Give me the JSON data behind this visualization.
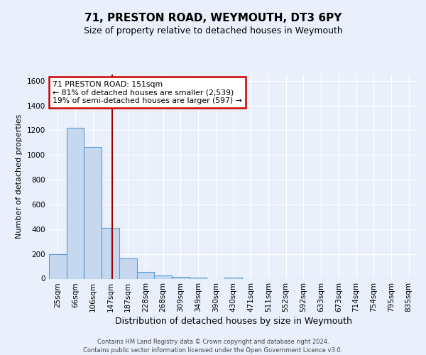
{
  "title1": "71, PRESTON ROAD, WEYMOUTH, DT3 6PY",
  "title2": "Size of property relative to detached houses in Weymouth",
  "xlabel": "Distribution of detached houses by size in Weymouth",
  "ylabel": "Number of detached properties",
  "categories": [
    "25sqm",
    "66sqm",
    "106sqm",
    "147sqm",
    "187sqm",
    "228sqm",
    "268sqm",
    "309sqm",
    "349sqm",
    "390sqm",
    "430sqm",
    "471sqm",
    "511sqm",
    "552sqm",
    "592sqm",
    "633sqm",
    "673sqm",
    "714sqm",
    "754sqm",
    "795sqm",
    "835sqm"
  ],
  "values": [
    200,
    1220,
    1065,
    410,
    165,
    52,
    25,
    14,
    9,
    0,
    10,
    0,
    0,
    0,
    0,
    0,
    0,
    0,
    0,
    0,
    0
  ],
  "bar_color": "#c5d8f0",
  "bar_edge_color": "#5b9bd5",
  "ylim": [
    0,
    1650
  ],
  "yticks": [
    0,
    200,
    400,
    600,
    800,
    1000,
    1200,
    1400,
    1600
  ],
  "property_line_bin": 3.1,
  "annotation_text": "71 PRESTON ROAD: 151sqm\n← 81% of detached houses are smaller (2,539)\n19% of semi-detached houses are larger (597) →",
  "footer1": "Contains HM Land Registry data © Crown copyright and database right 2024.",
  "footer2": "Contains public sector information licensed under the Open Government Licence v3.0.",
  "background_color": "#eaf0fb",
  "plot_bg_color": "#eaf0fb",
  "grid_color": "#ffffff",
  "annotation_box_color": "#ffffff",
  "annotation_border_color": "#cc0000",
  "title1_fontsize": 11,
  "title2_fontsize": 9,
  "xlabel_fontsize": 9,
  "ylabel_fontsize": 8,
  "tick_fontsize": 7.5
}
